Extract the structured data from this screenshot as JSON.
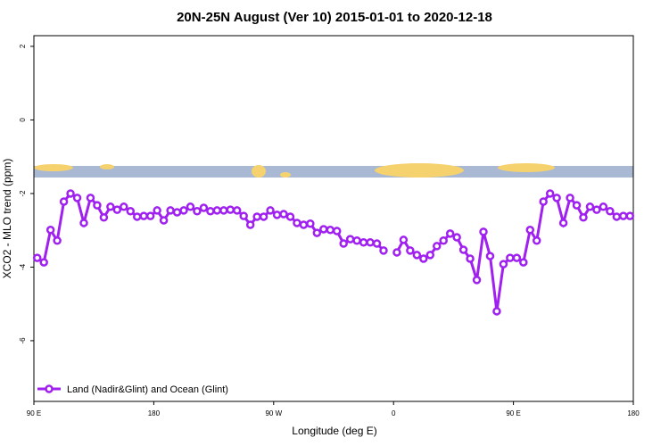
{
  "chart_data": {
    "type": "line",
    "title": "20N-25N August (Ver 10)   2015-01-01 to 2020-12-18",
    "x_label": "Longitude (deg E)",
    "y_label": "XCO2 - MLO trend (ppm)",
    "xlim": [
      90,
      540
    ],
    "ylim": [
      -7.65,
      2.29
    ],
    "xticks": [
      {
        "value": 90,
        "label": "90 E"
      },
      180,
      {
        "value": 270,
        "label": "90 W"
      },
      {
        "value": 360,
        "label": "0"
      },
      {
        "value": 450,
        "label": "90 E"
      },
      {
        "value": 540,
        "label": "180"
      }
    ],
    "yticks": [
      -6,
      -4,
      -2,
      0,
      2
    ],
    "legend": "bottom-left",
    "x": [
      92.5,
      97.5,
      102.5,
      107.5,
      112.5,
      117.5,
      122.5,
      127.5,
      132.5,
      137.5,
      142.5,
      147.5,
      152.5,
      157.5,
      162.5,
      167.5,
      172.5,
      177.5,
      182.5,
      187.5,
      192.5,
      197.5,
      202.5,
      207.5,
      212.5,
      217.5,
      222.5,
      227.5,
      232.5,
      237.5,
      242.5,
      247.5,
      252.5,
      257.5,
      262.5,
      267.5,
      272.5,
      277.5,
      282.5,
      287.5,
      292.5,
      297.5,
      302.5,
      307.5,
      312.5,
      317.5,
      322.5,
      327.5,
      332.5,
      337.5,
      342.5,
      347.5,
      352.5,
      357.5,
      362.5,
      367.5,
      372.5,
      377.5,
      382.5,
      387.5,
      392.5,
      397.5,
      402.5,
      407.5,
      412.5,
      417.5,
      422.5,
      427.5,
      432.5,
      437.5,
      442.5,
      447.5,
      452.5,
      457.5,
      462.5,
      467.5,
      472.5,
      477.5,
      482.5,
      487.5,
      492.5,
      497.5,
      502.5,
      507.5,
      512.5,
      517.5,
      522.5,
      527.5,
      532.5,
      537.5
    ],
    "series": [
      {
        "name": "Land (Nadir&Glint) and Ocean (Glint)",
        "color": "#a020f0",
        "values": [
          -3.75,
          -3.87,
          -2.99,
          -3.28,
          -2.22,
          -2.0,
          -2.12,
          -2.8,
          -2.12,
          -2.32,
          -2.65,
          -2.36,
          -2.44,
          -2.36,
          -2.48,
          -2.63,
          -2.61,
          -2.61,
          -2.46,
          -2.73,
          -2.46,
          -2.51,
          -2.46,
          -2.36,
          -2.48,
          -2.39,
          -2.48,
          -2.46,
          -2.46,
          -2.44,
          -2.46,
          -2.61,
          -2.85,
          -2.63,
          -2.63,
          -2.46,
          -2.58,
          -2.56,
          -2.63,
          -2.8,
          -2.85,
          -2.82,
          -3.07,
          -2.97,
          -2.99,
          -3.02,
          -3.36,
          -3.24,
          -3.28,
          -3.33,
          -3.33,
          -3.36,
          -3.55,
          null,
          -3.6,
          -3.26,
          -3.55,
          -3.67,
          -3.77,
          -3.67,
          -3.43,
          -3.28,
          -3.09,
          -3.19,
          -3.53,
          -3.77,
          -4.35,
          -3.04,
          -3.7,
          -5.2,
          -3.92,
          -3.75,
          -3.75,
          -3.87,
          -2.99,
          -3.28,
          -2.22,
          -2.0,
          -2.12,
          -2.8,
          -2.12,
          -2.32,
          -2.65,
          -2.36,
          -2.44,
          -2.36,
          -2.48,
          -2.63,
          -2.61,
          -2.61
        ]
      }
    ]
  }
}
